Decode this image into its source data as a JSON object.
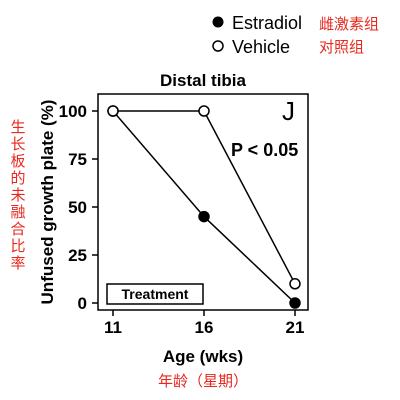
{
  "chart_data": {
    "type": "line",
    "title": "Distal tibia",
    "panel_letter": "J",
    "annotation": "P < 0.05",
    "treatment_label": "Treatment",
    "xlabel": "Age (wks)",
    "xlabel_cn": "年龄（星期）",
    "ylabel": "Unfused growth plate (%)",
    "ylabel_cn": "生长板的未融合比率",
    "x": [
      11,
      16,
      21
    ],
    "xlim": [
      11,
      21
    ],
    "ylim": [
      0,
      100
    ],
    "yticks": [
      0,
      25,
      50,
      75,
      100
    ],
    "series": [
      {
        "name": "Estradiol",
        "name_cn": "雌激素组",
        "marker": "filled-circle",
        "values": [
          100,
          45,
          0
        ]
      },
      {
        "name": "Vehicle",
        "name_cn": "对照组",
        "marker": "open-circle",
        "values": [
          100,
          100,
          10
        ]
      }
    ],
    "legend_position": "top-right",
    "colors": {
      "line": "#000000",
      "annotation_cn": "#e8281f"
    }
  }
}
